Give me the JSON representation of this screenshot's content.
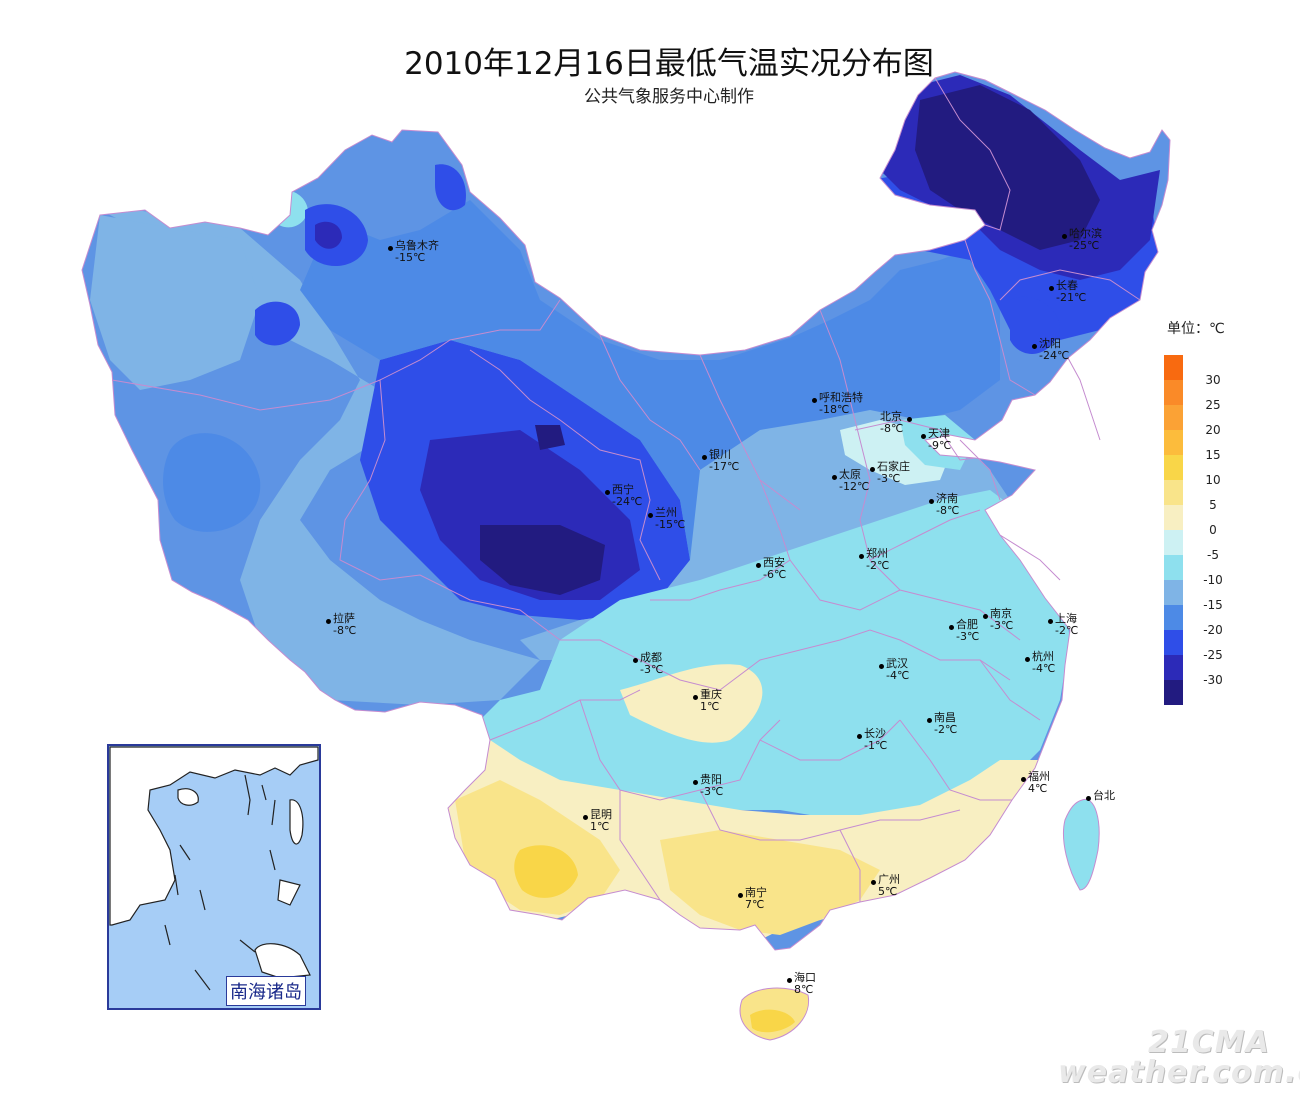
{
  "title": "2010年12月16日最低气温实况分布图",
  "subtitle": "公共气象服务中心制作",
  "legend": {
    "title": "单位：℃",
    "items": [
      {
        "label": "30",
        "color": "#f86a10"
      },
      {
        "label": "25",
        "color": "#fa8a28"
      },
      {
        "label": "20",
        "color": "#fba235"
      },
      {
        "label": "15",
        "color": "#fcbc3c"
      },
      {
        "label": "10",
        "color": "#f9d648"
      },
      {
        "label": "5",
        "color": "#f9e48a"
      },
      {
        "label": "0",
        "color": "#f8efc2"
      },
      {
        "label": "-5",
        "color": "#cdf1f3"
      },
      {
        "label": "-10",
        "color": "#8ee0ee"
      },
      {
        "label": "-15",
        "color": "#7fb4e6"
      },
      {
        "label": "-20",
        "color": "#4d8ae6"
      },
      {
        "label": "-25",
        "color": "#2f4ee8"
      },
      {
        "label": "-30",
        "color": "#2c2ab8"
      },
      {
        "label": "",
        "color": "#221b80"
      }
    ]
  },
  "cities": [
    {
      "name": "乌鲁木齐",
      "temp": "-15℃"
    },
    {
      "name": "哈尔滨",
      "temp": "-25℃"
    },
    {
      "name": "长春",
      "temp": "-21℃"
    },
    {
      "name": "沈阳",
      "temp": "-24℃"
    },
    {
      "name": "呼和浩特",
      "temp": "-18℃"
    },
    {
      "name": "北京",
      "temp": "-8℃"
    },
    {
      "name": "天津",
      "temp": "-9℃"
    },
    {
      "name": "石家庄",
      "temp": "-3℃"
    },
    {
      "name": "太原",
      "temp": "-12℃"
    },
    {
      "name": "银川",
      "temp": "-17℃"
    },
    {
      "name": "西宁",
      "temp": "-24℃"
    },
    {
      "name": "兰州",
      "temp": "-15℃"
    },
    {
      "name": "济南",
      "temp": "-8℃"
    },
    {
      "name": "郑州",
      "temp": "-2℃"
    },
    {
      "name": "西安",
      "temp": "-6℃"
    },
    {
      "name": "拉萨",
      "temp": "-8℃"
    },
    {
      "name": "合肥",
      "temp": "-3℃"
    },
    {
      "name": "南京",
      "temp": "-3℃"
    },
    {
      "name": "上海",
      "temp": "-2℃"
    },
    {
      "name": "成都",
      "temp": "-3℃"
    },
    {
      "name": "武汉",
      "temp": "-4℃"
    },
    {
      "name": "杭州",
      "temp": "-4℃"
    },
    {
      "name": "重庆",
      "temp": "1℃"
    },
    {
      "name": "长沙",
      "temp": "-1℃"
    },
    {
      "name": "南昌",
      "temp": "-2℃"
    },
    {
      "name": "贵阳",
      "temp": "-3℃"
    },
    {
      "name": "福州",
      "temp": "4℃"
    },
    {
      "name": "台北",
      "temp": ""
    },
    {
      "name": "昆明",
      "temp": "1℃"
    },
    {
      "name": "南宁",
      "temp": "7℃"
    },
    {
      "name": "广州",
      "temp": "5℃"
    },
    {
      "name": "海口",
      "temp": "8℃"
    }
  ],
  "inset": {
    "label": "南海诸岛"
  },
  "watermark": {
    "line1": "21CMA",
    "line2": "weather.com.cn"
  }
}
